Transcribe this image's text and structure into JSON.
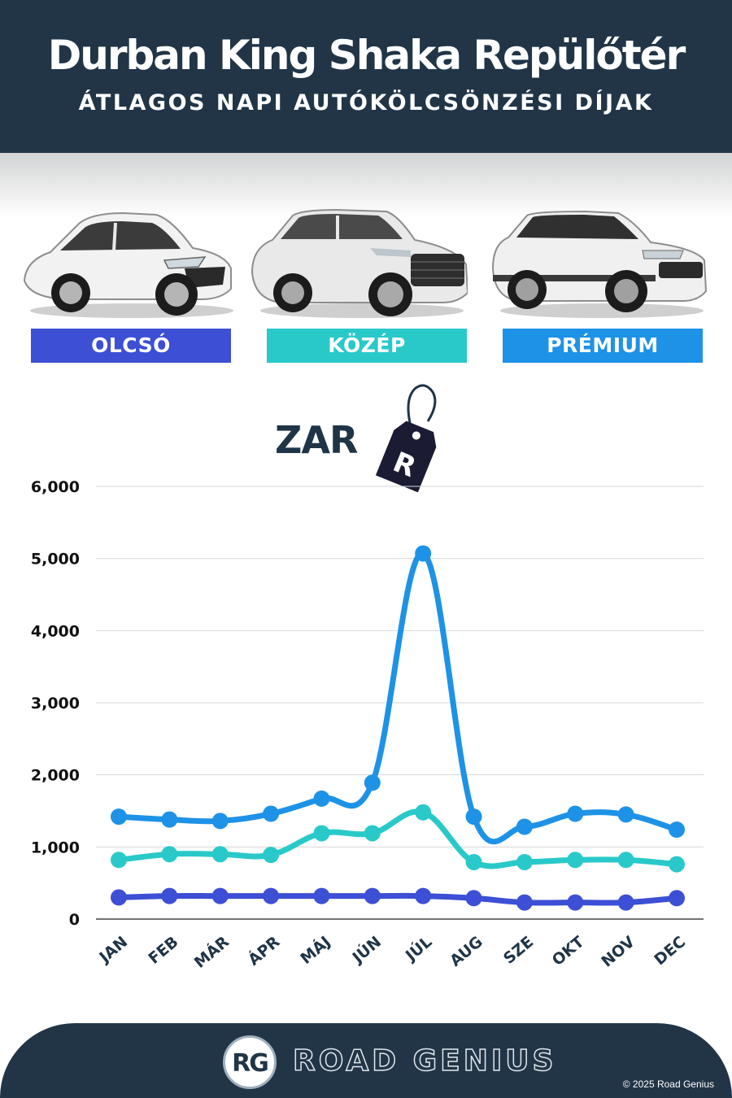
{
  "header": {
    "title": "Durban King Shaka Repülőtér",
    "subtitle": "ÁTLAGOS NAPI AUTÓKÖLCSÖNZÉSI DÍJAK",
    "background": "#213547"
  },
  "categories": [
    {
      "label": "OLCSÓ",
      "color": "#3d4fd4",
      "car_icon": "hatchback-car-icon"
    },
    {
      "label": "KÖZÉP",
      "color": "#29c9c9",
      "car_icon": "suv-car-icon"
    },
    {
      "label": "PRÉMIUM",
      "color": "#1e92e6",
      "car_icon": "luxury-suv-car-icon"
    }
  ],
  "currency": {
    "label": "ZAR",
    "tag_text": "R"
  },
  "chart_data": {
    "type": "line",
    "categories": [
      "JAN",
      "FEB",
      "MÁR",
      "ÁPR",
      "MÁJ",
      "JÚN",
      "JÚL",
      "AUG",
      "SZE",
      "OKT",
      "NOV",
      "DEC"
    ],
    "series": [
      {
        "name": "OLCSÓ",
        "color": "#3d4fd4",
        "values": [
          300,
          320,
          320,
          320,
          320,
          320,
          320,
          290,
          230,
          230,
          230,
          290
        ]
      },
      {
        "name": "KÖZÉP",
        "color": "#29c9c9",
        "values": [
          820,
          900,
          900,
          890,
          1190,
          1190,
          1480,
          790,
          790,
          820,
          820,
          760
        ]
      },
      {
        "name": "PRÉMIUM",
        "color": "#1e92e6",
        "values": [
          1420,
          1380,
          1360,
          1460,
          1670,
          1890,
          5070,
          1420,
          1280,
          1460,
          1450,
          1240
        ]
      }
    ],
    "yticks": [
      "0",
      "1,000",
      "2,000",
      "3,000",
      "4,000",
      "5,000",
      "6,000"
    ],
    "ylim": [
      0,
      6000
    ],
    "grid": true
  },
  "footer": {
    "logo_text": "RG",
    "brand": "ROAD GENIUS",
    "copyright": "© 2025 Road Genius"
  }
}
